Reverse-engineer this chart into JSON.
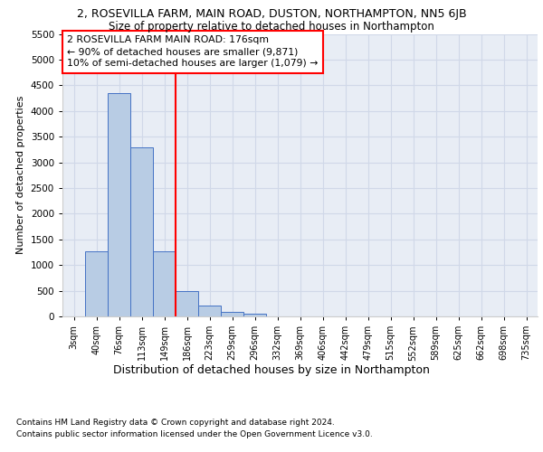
{
  "title_line1": "2, ROSEVILLA FARM, MAIN ROAD, DUSTON, NORTHAMPTON, NN5 6JB",
  "title_line2": "Size of property relative to detached houses in Northampton",
  "xlabel": "Distribution of detached houses by size in Northampton",
  "ylabel": "Number of detached properties",
  "bin_labels": [
    "3sqm",
    "40sqm",
    "76sqm",
    "113sqm",
    "149sqm",
    "186sqm",
    "223sqm",
    "259sqm",
    "296sqm",
    "332sqm",
    "369sqm",
    "406sqm",
    "442sqm",
    "479sqm",
    "515sqm",
    "552sqm",
    "589sqm",
    "625sqm",
    "662sqm",
    "698sqm",
    "735sqm"
  ],
  "bar_values": [
    0,
    1260,
    4350,
    3300,
    1260,
    490,
    215,
    90,
    60,
    0,
    0,
    0,
    0,
    0,
    0,
    0,
    0,
    0,
    0,
    0,
    0
  ],
  "bar_color": "#b8cce4",
  "bar_edge_color": "#4472c4",
  "vline_color": "red",
  "annotation_text": "2 ROSEVILLA FARM MAIN ROAD: 176sqm\n← 90% of detached houses are smaller (9,871)\n10% of semi-detached houses are larger (1,079) →",
  "annotation_box_color": "white",
  "annotation_box_edge_color": "red",
  "ylim": [
    0,
    5500
  ],
  "yticks": [
    0,
    500,
    1000,
    1500,
    2000,
    2500,
    3000,
    3500,
    4000,
    4500,
    5000,
    5500
  ],
  "grid_color": "#d0d8e8",
  "background_color": "#e8edf5",
  "footer_line1": "Contains HM Land Registry data © Crown copyright and database right 2024.",
  "footer_line2": "Contains public sector information licensed under the Open Government Licence v3.0.",
  "font_family": "DejaVu Sans",
  "title1_fontsize": 9,
  "title2_fontsize": 8.5,
  "tick_fontsize": 7,
  "ylabel_fontsize": 8,
  "xlabel_fontsize": 9,
  "footer_fontsize": 6.5,
  "annot_fontsize": 7.8
}
